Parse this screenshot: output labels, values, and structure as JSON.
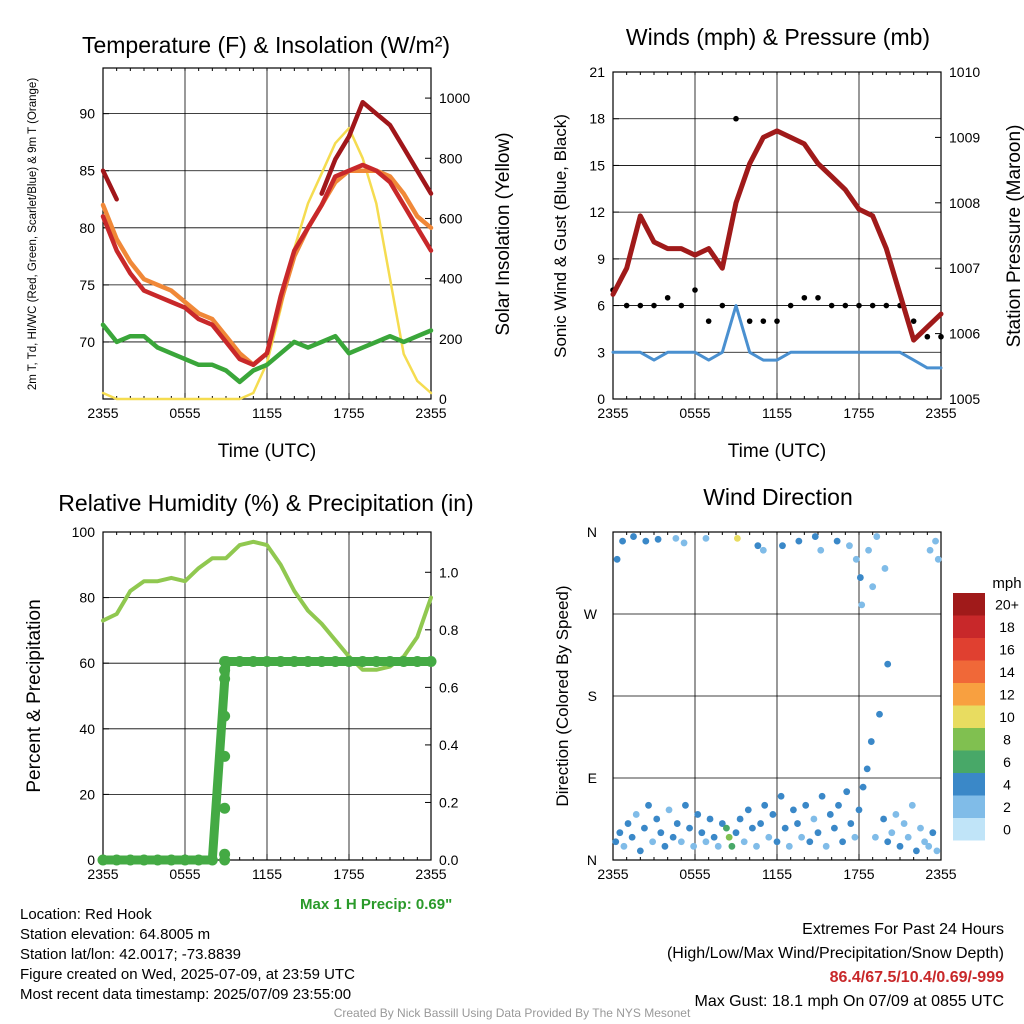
{
  "figure": {
    "footer": "Created By Nick Bassill Using Data Provided By The NYS Mesonet"
  },
  "station": {
    "location_line": "Location: Red Hook",
    "elevation_line": "Station elevation: 64.8005 m",
    "latlon_line": "Station lat/lon: 42.0017; -73.8839",
    "created_line": "Figure created on Wed, 2025-07-09, at 23:59 UTC",
    "recent_line": "Most recent data timestamp: 2025/07/09 23:55:00"
  },
  "extremes": {
    "title": "Extremes For Past 24 Hours",
    "subtitle": "(High/Low/Max Wind/Precipitation/Snow Depth)",
    "values": "86.4/67.5/10.4/0.69/-999",
    "max_gust": "Max Gust: 18.1 mph On 07/09 at 0855 UTC"
  },
  "time_ticks": [
    "2355",
    "0555",
    "1155",
    "1755",
    "2355"
  ],
  "time_hours": [
    0,
    6,
    12,
    18,
    24
  ],
  "colors": {
    "temp_2m": "#c8282a",
    "dewpoint": "#3aa63a",
    "heat_index": "#a0161a",
    "temp_9m": "#f08838",
    "solar": "#f5dc50",
    "wind": "#4a90d0",
    "gust": "#000000",
    "pressure": "#a01a1a",
    "rh": "#90c850",
    "precip": "#44aa44"
  },
  "chart_data": [
    {
      "type": "line",
      "title": "Temperature (F) & Insolation (W/m²)",
      "xlabel": "Time (UTC)",
      "ylabel_left": "2m T, Td, HI/WC (Red, Green, Scarlet/Blue) & 9m T (Orange)",
      "ylabel_right": "Solar Insolation (Yellow)",
      "ylim_left": [
        65,
        94
      ],
      "yticks_left": [
        70,
        75,
        80,
        85,
        90
      ],
      "ylim_right": [
        0,
        1100
      ],
      "yticks_right": [
        0,
        200,
        400,
        600,
        800,
        1000
      ],
      "x_hours": [
        0,
        1,
        2,
        3,
        4,
        5,
        6,
        7,
        8,
        9,
        10,
        11,
        12,
        13,
        14,
        15,
        16,
        17,
        18,
        19,
        20,
        21,
        22,
        23,
        24
      ],
      "series": [
        {
          "key": "temp_2m",
          "axis": "left",
          "values": [
            81,
            78,
            76,
            74.5,
            74,
            73.5,
            73,
            72,
            71.5,
            70,
            68.5,
            68,
            69,
            74,
            78,
            80,
            82,
            84.5,
            85,
            85.5,
            85,
            84,
            82,
            80,
            78
          ]
        },
        {
          "key": "temp_9m",
          "axis": "left",
          "values": [
            82,
            79,
            77,
            75.5,
            75,
            74.5,
            73.5,
            72.5,
            72,
            70.5,
            69,
            68,
            69,
            73.5,
            77.5,
            80,
            82,
            84,
            85,
            85,
            85,
            84.5,
            83,
            81,
            80
          ]
        },
        {
          "key": "heat_index",
          "axis": "left",
          "values": [
            85,
            82.5,
            null,
            null,
            null,
            null,
            null,
            null,
            null,
            null,
            null,
            null,
            null,
            null,
            null,
            null,
            83,
            86,
            88,
            91,
            90,
            89,
            87,
            85,
            83
          ]
        },
        {
          "key": "dewpoint",
          "axis": "left",
          "values": [
            71.5,
            70,
            70.5,
            70.5,
            69.5,
            69,
            68.5,
            68,
            68,
            67.5,
            66.5,
            67.5,
            68,
            69,
            70,
            69.5,
            70,
            70.5,
            69,
            69.5,
            70,
            70.5,
            70,
            70.5,
            71
          ]
        },
        {
          "key": "solar",
          "axis": "right",
          "values": [
            20,
            0,
            0,
            0,
            0,
            0,
            0,
            0,
            0,
            0,
            0,
            20,
            120,
            300,
            500,
            650,
            750,
            850,
            900,
            800,
            650,
            400,
            150,
            60,
            20
          ]
        }
      ]
    },
    {
      "type": "line",
      "title": "Winds (mph) & Pressure (mb)",
      "xlabel": "Time (UTC)",
      "ylabel_left": "Sonic Wind & Gust (Blue, Black)",
      "ylabel_right": "Station Pressure (Maroon)",
      "ylim_left": [
        0,
        21
      ],
      "yticks_left": [
        0,
        3,
        6,
        9,
        12,
        15,
        18,
        21
      ],
      "ylim_right": [
        1005,
        1010
      ],
      "yticks_right": [
        1005,
        1006,
        1007,
        1008,
        1009,
        1010
      ],
      "x_hours": [
        0,
        1,
        2,
        3,
        4,
        5,
        6,
        7,
        8,
        9,
        10,
        11,
        12,
        13,
        14,
        15,
        16,
        17,
        18,
        19,
        20,
        21,
        22,
        23,
        24
      ],
      "series": [
        {
          "key": "wind",
          "axis": "left",
          "name": "Sonic Wind",
          "values": [
            3,
            3,
            3,
            2.5,
            3,
            3,
            3,
            2.5,
            3,
            6,
            3,
            2.5,
            2.5,
            3,
            3,
            3,
            3,
            3,
            3,
            3,
            3,
            3,
            2.5,
            2,
            2
          ]
        },
        {
          "key": "gust",
          "axis": "left",
          "name": "Gust",
          "values": [
            7,
            6,
            6,
            6,
            6.5,
            6,
            7,
            5,
            6,
            18,
            5,
            5,
            5,
            6,
            6.5,
            6.5,
            6,
            6,
            6,
            6,
            6,
            6,
            5,
            4,
            4
          ]
        },
        {
          "key": "pressure",
          "axis": "right",
          "name": "Station Pressure",
          "values": [
            1006.6,
            1007,
            1007.8,
            1007.4,
            1007.3,
            1007.3,
            1007.2,
            1007.3,
            1007.0,
            1008.0,
            1008.6,
            1009.0,
            1009.1,
            1009.0,
            1008.9,
            1008.6,
            1008.4,
            1008.2,
            1007.9,
            1007.8,
            1007.3,
            1006.6,
            1005.9,
            1006.1,
            1006.3
          ]
        }
      ]
    },
    {
      "type": "line",
      "title": "Relative Humidity (%) & Precipitation (in)",
      "xlabel": "",
      "ylabel_left": "Percent & Precipitation",
      "ylim_left": [
        0,
        100
      ],
      "yticks_left": [
        0,
        20,
        40,
        60,
        80,
        100
      ],
      "ylim_right": [
        0,
        1.14
      ],
      "yticks_right": [
        "0.0",
        "0.2",
        "0.4",
        "0.6",
        "0.8",
        "1.0"
      ],
      "x_hours": [
        0,
        1,
        2,
        3,
        4,
        5,
        6,
        7,
        8,
        9,
        10,
        11,
        12,
        13,
        14,
        15,
        16,
        17,
        18,
        19,
        20,
        21,
        22,
        23,
        24
      ],
      "series": [
        {
          "key": "rh",
          "axis": "left",
          "name": "Relative Humidity",
          "values": [
            73,
            75,
            82,
            85,
            85,
            86,
            85,
            89,
            92,
            92,
            96,
            97,
            96,
            90,
            82,
            76,
            72,
            67,
            62,
            58,
            58,
            59,
            62,
            68,
            80
          ]
        },
        {
          "key": "precip",
          "axis": "right",
          "name": "Precipitation",
          "values": [
            0,
            0,
            0,
            0,
            0,
            0,
            0,
            0,
            0,
            0.69,
            0.69,
            0.69,
            0.69,
            0.69,
            0.69,
            0.69,
            0.69,
            0.69,
            0.69,
            0.69,
            0.69,
            0.69,
            0.69,
            0.69,
            0.69
          ]
        }
      ],
      "precip_ramp": [
        0,
        0.02,
        0.18,
        0.36,
        0.5,
        0.63,
        0.66,
        0.69
      ],
      "annotation": "Max 1 H Precip: 0.69\""
    },
    {
      "type": "scatter",
      "title": "Wind Direction",
      "ylabel_left": "Direction (Colored By Speed)",
      "ylim_left": [
        0,
        360
      ],
      "ytick_labels": [
        "N",
        "E",
        "S",
        "W",
        "N"
      ],
      "ytick_values": [
        0,
        90,
        180,
        270,
        360
      ],
      "legend_title": "mph",
      "legend_labels": [
        "20+",
        "18",
        "16",
        "14",
        "12",
        "10",
        "8",
        "6",
        "4",
        "2",
        "0"
      ],
      "legend_colors": [
        "#a01a1a",
        "#c8282a",
        "#e04030",
        "#f06838",
        "#f8a040",
        "#e8dc60",
        "#80c050",
        "#48a868",
        "#3a88c8",
        "#80bce8",
        "#c0e4f8"
      ],
      "points": [
        [
          0.2,
          20,
          4
        ],
        [
          0.5,
          30,
          3
        ],
        [
          0.8,
          15,
          2
        ],
        [
          1.1,
          40,
          4
        ],
        [
          1.4,
          25,
          3
        ],
        [
          1.7,
          50,
          2
        ],
        [
          2.0,
          10,
          4
        ],
        [
          2.3,
          35,
          3
        ],
        [
          2.6,
          60,
          4
        ],
        [
          2.9,
          20,
          2
        ],
        [
          3.2,
          45,
          3
        ],
        [
          3.5,
          30,
          4
        ],
        [
          3.8,
          15,
          3
        ],
        [
          4.1,
          55,
          2
        ],
        [
          4.4,
          25,
          4
        ],
        [
          4.7,
          40,
          3
        ],
        [
          5.0,
          20,
          2
        ],
        [
          5.3,
          60,
          4
        ],
        [
          5.6,
          35,
          3
        ],
        [
          5.9,
          15,
          2
        ],
        [
          6.2,
          50,
          4
        ],
        [
          6.5,
          30,
          3
        ],
        [
          6.8,
          20,
          2
        ],
        [
          7.1,
          45,
          3
        ],
        [
          7.4,
          25,
          4
        ],
        [
          7.7,
          15,
          2
        ],
        [
          8.0,
          40,
          3
        ],
        [
          8.3,
          35,
          6
        ],
        [
          8.5,
          25,
          7
        ],
        [
          8.7,
          15,
          6
        ],
        [
          9.0,
          30,
          4
        ],
        [
          9.3,
          45,
          3
        ],
        [
          9.6,
          20,
          2
        ],
        [
          9.9,
          55,
          4
        ],
        [
          10.2,
          35,
          3
        ],
        [
          10.5,
          15,
          2
        ],
        [
          10.8,
          40,
          4
        ],
        [
          11.1,
          60,
          3
        ],
        [
          11.4,
          25,
          2
        ],
        [
          11.7,
          50,
          4
        ],
        [
          12.0,
          20,
          3
        ],
        [
          12.3,
          70,
          4
        ],
        [
          12.6,
          35,
          3
        ],
        [
          12.9,
          15,
          2
        ],
        [
          13.2,
          55,
          4
        ],
        [
          13.5,
          40,
          3
        ],
        [
          13.8,
          25,
          2
        ],
        [
          14.1,
          60,
          4
        ],
        [
          14.4,
          20,
          3
        ],
        [
          14.7,
          45,
          2
        ],
        [
          15.0,
          30,
          4
        ],
        [
          15.3,
          70,
          3
        ],
        [
          15.6,
          15,
          2
        ],
        [
          15.9,
          50,
          4
        ],
        [
          16.2,
          35,
          3
        ],
        [
          16.5,
          60,
          4
        ],
        [
          16.8,
          20,
          3
        ],
        [
          17.1,
          75,
          4
        ],
        [
          17.4,
          40,
          3
        ],
        [
          17.7,
          25,
          2
        ],
        [
          18.0,
          55,
          4
        ],
        [
          18.3,
          80,
          3
        ],
        [
          18.6,
          100,
          4
        ],
        [
          18.9,
          130,
          4
        ],
        [
          19.2,
          25,
          1
        ],
        [
          19.5,
          160,
          4
        ],
        [
          19.8,
          45,
          4
        ],
        [
          20.1,
          20,
          3
        ],
        [
          20.4,
          30,
          1
        ],
        [
          20.7,
          50,
          2
        ],
        [
          21.0,
          15,
          3
        ],
        [
          21.3,
          40,
          1
        ],
        [
          21.6,
          25,
          2
        ],
        [
          21.9,
          60,
          1
        ],
        [
          22.2,
          10,
          3
        ],
        [
          22.5,
          35,
          2
        ],
        [
          22.8,
          20,
          1
        ],
        [
          23.1,
          15,
          2
        ],
        [
          23.4,
          30,
          3
        ],
        [
          23.7,
          10,
          2
        ],
        [
          1.5,
          355,
          4
        ],
        [
          2.4,
          350,
          3
        ],
        [
          3.3,
          352,
          4
        ],
        [
          4.6,
          353,
          2
        ],
        [
          5.2,
          348,
          2
        ],
        [
          6.8,
          353,
          2
        ],
        [
          9.1,
          353,
          10
        ],
        [
          10.6,
          345,
          3
        ],
        [
          11.0,
          340,
          2
        ],
        [
          12.4,
          345,
          3
        ],
        [
          13.6,
          350,
          4
        ],
        [
          14.8,
          355,
          4
        ],
        [
          15.2,
          340,
          2
        ],
        [
          16.4,
          350,
          4
        ],
        [
          17.3,
          345,
          2
        ],
        [
          17.8,
          330,
          2
        ],
        [
          18.1,
          310,
          3
        ],
        [
          18.2,
          280,
          2
        ],
        [
          18.7,
          340,
          2
        ],
        [
          19.0,
          300,
          1
        ],
        [
          19.3,
          355,
          2
        ],
        [
          19.9,
          320,
          2
        ],
        [
          20.1,
          215,
          3
        ],
        [
          23.2,
          340,
          2
        ],
        [
          23.6,
          350,
          2
        ],
        [
          23.8,
          330,
          2
        ],
        [
          0.7,
          350,
          3
        ],
        [
          0.3,
          330,
          4
        ]
      ]
    }
  ]
}
